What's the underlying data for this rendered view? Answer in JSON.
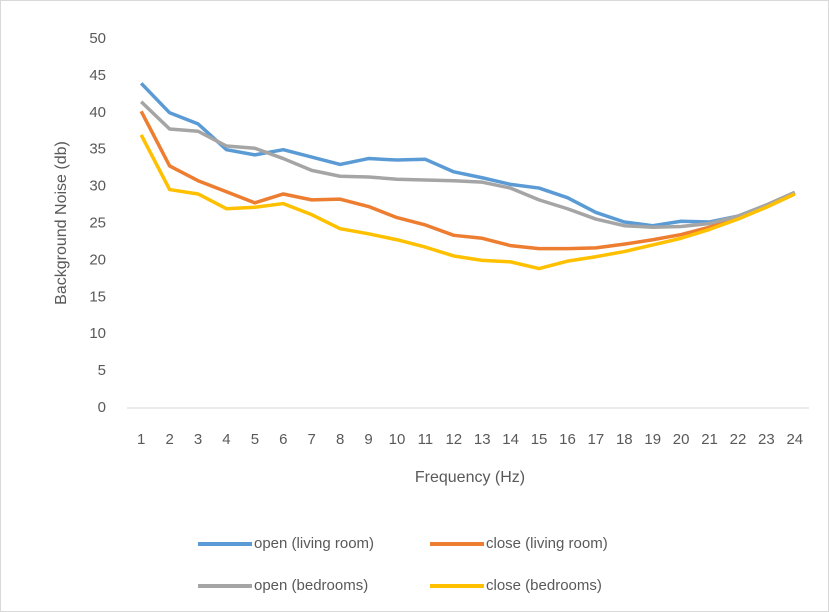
{
  "chart_data": {
    "type": "line",
    "x_label": "Frequency (Hz)",
    "y_label": "Background Noise (db)",
    "categories": [
      1,
      2,
      3,
      4,
      5,
      6,
      7,
      8,
      9,
      10,
      11,
      12,
      13,
      14,
      15,
      16,
      17,
      18,
      19,
      20,
      21,
      22,
      23,
      24
    ],
    "series": [
      {
        "name": "open (living room)",
        "color": "#5b9bd5",
        "values": [
          44,
          40,
          38.5,
          35,
          34.3,
          35,
          34,
          33,
          33.8,
          33.6,
          33.7,
          32,
          31.2,
          30.3,
          29.8,
          28.5,
          26.5,
          25.2,
          24.7,
          25.3,
          25.2,
          26,
          27.5,
          29.2
        ]
      },
      {
        "name": "close (living room)",
        "color": "#ed7d31",
        "values": [
          40.2,
          32.8,
          30.8,
          29.3,
          27.8,
          29,
          28.2,
          28.3,
          27.3,
          25.8,
          24.8,
          23.4,
          23,
          22,
          21.6,
          21.6,
          21.7,
          22.2,
          22.8,
          23.5,
          24.5,
          25.8,
          27.5,
          29.2
        ]
      },
      {
        "name": "open (bedrooms)",
        "color": "#a5a5a5",
        "values": [
          41.5,
          37.8,
          37.5,
          35.5,
          35.2,
          33.8,
          32.2,
          31.4,
          31.3,
          31,
          30.9,
          30.8,
          30.6,
          29.8,
          28.2,
          27,
          25.6,
          24.7,
          24.5,
          24.6,
          25,
          26,
          27.5,
          29.2
        ]
      },
      {
        "name": "close (bedrooms)",
        "color": "#ffc000",
        "values": [
          37,
          29.6,
          29,
          27,
          27.2,
          27.7,
          26.2,
          24.3,
          23.6,
          22.8,
          21.8,
          20.6,
          20,
          19.8,
          18.9,
          19.9,
          20.5,
          21.2,
          22.1,
          23,
          24.2,
          25.6,
          27.2,
          29
        ]
      }
    ],
    "ylim": [
      0,
      50
    ],
    "yticks": [
      0,
      5,
      10,
      15,
      20,
      25,
      30,
      35,
      40,
      45,
      50
    ],
    "grid": false,
    "legend": "bottom"
  }
}
